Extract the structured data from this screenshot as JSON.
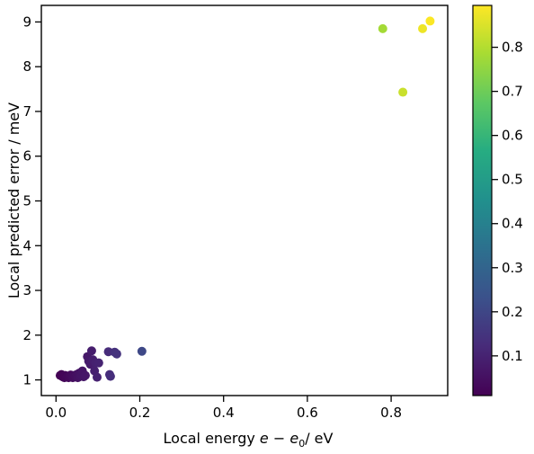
{
  "chart_data": {
    "type": "scatter",
    "xlabel": "Local energy e − e₀/ eV",
    "xlabel_parts": {
      "prefix": "Local energy ",
      "var": "e",
      "minus": " − ",
      "sub_var": "e",
      "sub": "0",
      "suffix": "/ eV"
    },
    "ylabel": "Local predicted error / meV",
    "xlim": [
      -0.035,
      0.935
    ],
    "ylim": [
      0.65,
      9.37
    ],
    "xticks": [
      {
        "value": 0.0,
        "label": "0.0"
      },
      {
        "value": 0.2,
        "label": "0.2"
      },
      {
        "value": 0.4,
        "label": "0.4"
      },
      {
        "value": 0.6,
        "label": "0.6"
      },
      {
        "value": 0.8,
        "label": "0.8"
      }
    ],
    "yticks": [
      {
        "value": 1,
        "label": "1"
      },
      {
        "value": 2,
        "label": "2"
      },
      {
        "value": 3,
        "label": "3"
      },
      {
        "value": 4,
        "label": "4"
      },
      {
        "value": 5,
        "label": "5"
      },
      {
        "value": 6,
        "label": "6"
      },
      {
        "value": 7,
        "label": "7"
      },
      {
        "value": 8,
        "label": "8"
      },
      {
        "value": 9,
        "label": "9"
      }
    ],
    "colormap": "viridis",
    "color_range": [
      0.01,
      0.895
    ],
    "colorbar_ticks": [
      {
        "value": 0.1,
        "label": "0.1"
      },
      {
        "value": 0.2,
        "label": "0.2"
      },
      {
        "value": 0.3,
        "label": "0.3"
      },
      {
        "value": 0.4,
        "label": "0.4"
      },
      {
        "value": 0.5,
        "label": "0.5"
      },
      {
        "value": 0.6,
        "label": "0.6"
      },
      {
        "value": 0.7,
        "label": "0.7"
      },
      {
        "value": 0.8,
        "label": "0.8"
      }
    ],
    "grid": false,
    "points": [
      {
        "x": 0.01,
        "y": 1.1
      },
      {
        "x": 0.013,
        "y": 1.12
      },
      {
        "x": 0.016,
        "y": 1.07
      },
      {
        "x": 0.018,
        "y": 1.09
      },
      {
        "x": 0.02,
        "y": 1.05
      },
      {
        "x": 0.022,
        "y": 1.1
      },
      {
        "x": 0.025,
        "y": 1.06
      },
      {
        "x": 0.027,
        "y": 1.08
      },
      {
        "x": 0.03,
        "y": 1.05
      },
      {
        "x": 0.032,
        "y": 1.09
      },
      {
        "x": 0.035,
        "y": 1.11
      },
      {
        "x": 0.038,
        "y": 1.07
      },
      {
        "x": 0.04,
        "y": 1.05
      },
      {
        "x": 0.043,
        "y": 1.1
      },
      {
        "x": 0.046,
        "y": 1.08
      },
      {
        "x": 0.049,
        "y": 1.12
      },
      {
        "x": 0.052,
        "y": 1.05
      },
      {
        "x": 0.055,
        "y": 1.15
      },
      {
        "x": 0.058,
        "y": 1.08
      },
      {
        "x": 0.06,
        "y": 1.12
      },
      {
        "x": 0.063,
        "y": 1.2
      },
      {
        "x": 0.066,
        "y": 1.07
      },
      {
        "x": 0.07,
        "y": 1.1
      },
      {
        "x": 0.075,
        "y": 1.52
      },
      {
        "x": 0.078,
        "y": 1.42
      },
      {
        "x": 0.082,
        "y": 1.35
      },
      {
        "x": 0.085,
        "y": 1.65
      },
      {
        "x": 0.088,
        "y": 1.45
      },
      {
        "x": 0.092,
        "y": 1.2
      },
      {
        "x": 0.095,
        "y": 1.38
      },
      {
        "x": 0.098,
        "y": 1.06
      },
      {
        "x": 0.102,
        "y": 1.38
      },
      {
        "x": 0.125,
        "y": 1.63
      },
      {
        "x": 0.128,
        "y": 1.12
      },
      {
        "x": 0.13,
        "y": 1.08
      },
      {
        "x": 0.14,
        "y": 1.62
      },
      {
        "x": 0.145,
        "y": 1.58
      },
      {
        "x": 0.205,
        "y": 1.64
      },
      {
        "x": 0.78,
        "y": 8.85
      },
      {
        "x": 0.828,
        "y": 7.43
      },
      {
        "x": 0.875,
        "y": 8.85
      },
      {
        "x": 0.893,
        "y": 9.02
      }
    ]
  }
}
